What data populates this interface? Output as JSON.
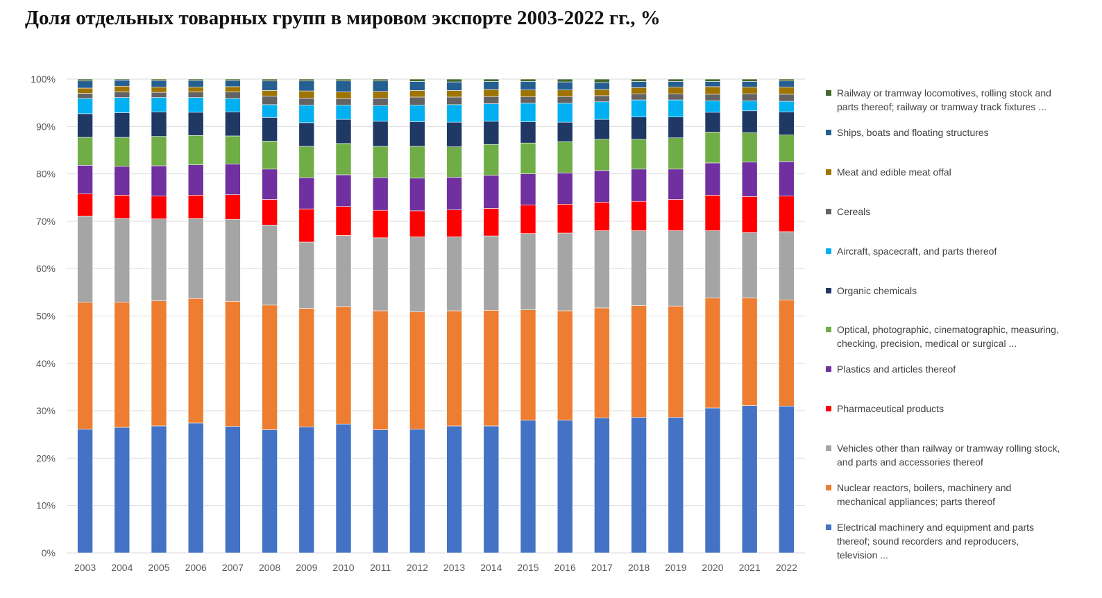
{
  "title": "Доля отдельных товарных групп в мировом экспорте 2003-2022 гг., %",
  "chart_data": {
    "type": "bar",
    "stacked": true,
    "percent_stacked": true,
    "categories": [
      "2003",
      "2004",
      "2005",
      "2006",
      "2007",
      "2008",
      "2009",
      "2010",
      "2011",
      "2012",
      "2013",
      "2014",
      "2015",
      "2016",
      "2017",
      "2018",
      "2019",
      "2020",
      "2021",
      "2022"
    ],
    "y_ticks": [
      "0%",
      "10%",
      "20%",
      "30%",
      "40%",
      "50%",
      "60%",
      "70%",
      "80%",
      "90%",
      "100%"
    ],
    "ylim": [
      0,
      100
    ],
    "grid": true,
    "legend_position": "right",
    "series": [
      {
        "name": "Electrical machinery and equipment and parts thereof; sound recorders and reproducers, television ...",
        "color": "#4472C4",
        "values": [
          26.1,
          26.5,
          26.8,
          27.4,
          26.7,
          26.0,
          26.6,
          27.2,
          26.0,
          26.1,
          26.8,
          26.8,
          28.0,
          28.0,
          28.5,
          28.6,
          28.6,
          30.6,
          31.1,
          31.0
        ]
      },
      {
        "name": "Nuclear reactors, boilers, machinery and mechanical appliances; parts thereof",
        "color": "#ED7D31",
        "values": [
          26.8,
          26.4,
          26.4,
          26.3,
          26.4,
          26.3,
          25.0,
          24.8,
          25.1,
          24.8,
          24.3,
          24.4,
          23.3,
          23.1,
          23.2,
          23.6,
          23.5,
          23.2,
          22.7,
          22.4
        ]
      },
      {
        "name": "Vehicles other than railway or tramway rolling stock, and parts and accessories thereof",
        "color": "#A5A5A5",
        "values": [
          18.2,
          17.7,
          17.3,
          16.9,
          17.3,
          16.9,
          14.0,
          15.0,
          15.4,
          15.8,
          15.6,
          15.7,
          16.1,
          16.4,
          16.3,
          15.8,
          15.9,
          14.2,
          13.8,
          14.4
        ]
      },
      {
        "name": "Pharmaceutical products",
        "color": "#FF0000",
        "values": [
          4.7,
          4.9,
          4.8,
          4.9,
          5.2,
          5.4,
          7.0,
          6.1,
          5.8,
          5.5,
          5.7,
          5.8,
          6.0,
          6.1,
          6.0,
          6.2,
          6.6,
          7.5,
          7.6,
          7.5
        ]
      },
      {
        "name": "Plastics and articles thereof",
        "color": "#7030A0",
        "values": [
          6.0,
          6.1,
          6.4,
          6.4,
          6.5,
          6.4,
          6.6,
          6.7,
          6.9,
          6.9,
          6.9,
          7.0,
          6.6,
          6.6,
          6.7,
          6.8,
          6.4,
          6.8,
          7.3,
          7.3
        ]
      },
      {
        "name": "Optical, photographic, cinematographic, measuring, checking, precision, medical or surgical ...",
        "color": "#70AD47",
        "values": [
          5.9,
          6.1,
          6.2,
          6.2,
          5.9,
          5.9,
          6.6,
          6.6,
          6.6,
          6.7,
          6.4,
          6.5,
          6.5,
          6.6,
          6.6,
          6.3,
          6.6,
          6.5,
          6.2,
          5.6
        ]
      },
      {
        "name": "Organic chemicals",
        "color": "#1F3864",
        "values": [
          5.0,
          5.2,
          5.2,
          4.9,
          5.1,
          5.0,
          5.0,
          5.1,
          5.3,
          5.2,
          5.2,
          4.9,
          4.5,
          4.1,
          4.2,
          4.7,
          4.4,
          4.2,
          4.6,
          4.9
        ]
      },
      {
        "name": "Aircraft, spacecraft, and parts thereof",
        "color": "#00B0F0",
        "values": [
          3.2,
          3.2,
          3.0,
          3.1,
          2.8,
          2.7,
          3.7,
          3.0,
          3.3,
          3.5,
          3.7,
          3.7,
          3.9,
          4.0,
          3.7,
          3.6,
          3.6,
          2.4,
          2.1,
          2.2
        ]
      },
      {
        "name": "Cereals",
        "color": "#636363",
        "values": [
          1.1,
          1.2,
          1.1,
          1.2,
          1.4,
          1.8,
          1.5,
          1.4,
          1.6,
          1.7,
          1.6,
          1.5,
          1.4,
          1.4,
          1.3,
          1.3,
          1.3,
          1.4,
          1.5,
          1.5
        ]
      },
      {
        "name": "Meat and edible meat offal",
        "color": "#9E7400",
        "values": [
          1.1,
          1.2,
          1.1,
          1.0,
          1.1,
          1.2,
          1.5,
          1.4,
          1.4,
          1.4,
          1.4,
          1.5,
          1.4,
          1.4,
          1.3,
          1.3,
          1.4,
          1.6,
          1.4,
          1.5
        ]
      },
      {
        "name": "Ships, boats and floating structures",
        "color": "#255E91",
        "values": [
          1.5,
          1.3,
          1.4,
          1.4,
          1.3,
          2.0,
          2.1,
          2.3,
          2.2,
          1.9,
          1.8,
          1.7,
          1.8,
          1.7,
          1.5,
          1.3,
          1.2,
          1.1,
          1.2,
          1.3
        ]
      },
      {
        "name": "Railway or tramway locomotives, rolling stock and parts thereof; railway or tramway track fixtures ...",
        "color": "#43682B",
        "values": [
          0.4,
          0.2,
          0.3,
          0.3,
          0.3,
          0.4,
          0.4,
          0.4,
          0.4,
          0.5,
          0.6,
          0.5,
          0.5,
          0.6,
          0.7,
          0.5,
          0.5,
          0.5,
          0.5,
          0.4
        ]
      }
    ]
  }
}
